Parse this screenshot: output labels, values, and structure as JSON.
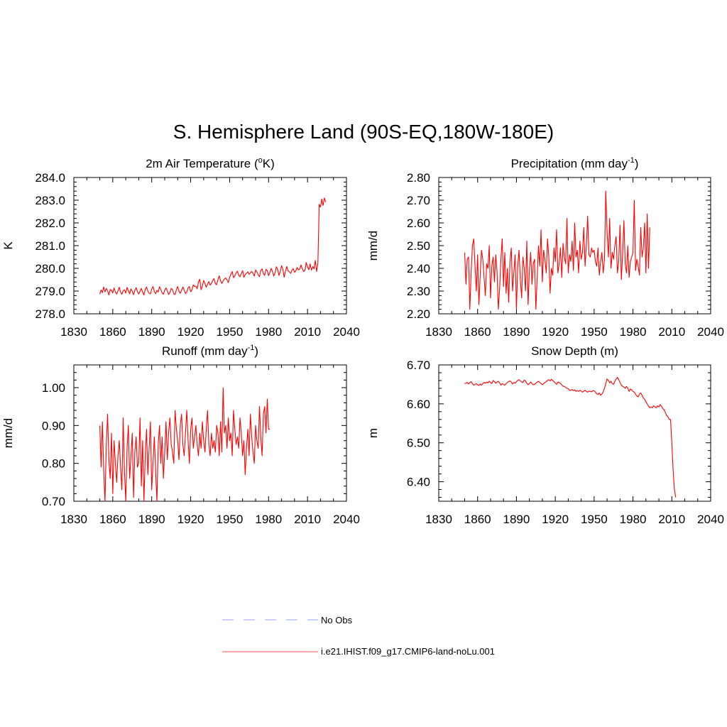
{
  "title": "S. Hemisphere Land (90S-EQ,180W-180E)",
  "legend": {
    "items": [
      {
        "label": "No Obs",
        "color": "#aab4ff",
        "style": "dashed"
      },
      {
        "label": "i.e21.IHIST.f09_g17.CMIP6-land-noLu.001",
        "color": "#ff7777",
        "style": "solid"
      }
    ]
  },
  "series_color": "#ff0000",
  "chart_data": [
    {
      "type": "line",
      "title": "2m Air Temperature (°K)",
      "title_base": "2m Air Temperature (",
      "title_sup": "o",
      "title_tail": "K)",
      "xlabel": "",
      "ylabel": "K",
      "xlim": [
        1830,
        2040
      ],
      "ylim": [
        278.0,
        284.0
      ],
      "xticks": [
        1830,
        1860,
        1890,
        1920,
        1950,
        1980,
        2010,
        2040
      ],
      "yticks": [
        "278.0",
        "279.0",
        "280.0",
        "281.0",
        "282.0",
        "283.0",
        "284.0"
      ],
      "x_start": 1850,
      "values": [
        278.86,
        279.05,
        278.93,
        279.18,
        278.97,
        279.11,
        279.02,
        278.83,
        279.07,
        279.04,
        278.92,
        279.14,
        278.96,
        278.87,
        279.01,
        279.17,
        278.95,
        278.86,
        279.02,
        279.06,
        278.91,
        279.16,
        279.01,
        278.88,
        279.1,
        278.98,
        278.84,
        279.03,
        279.15,
        278.98,
        278.87,
        279.0,
        279.12,
        278.96,
        278.83,
        279.07,
        279.18,
        279.0,
        278.91,
        278.88,
        279.09,
        279.2,
        278.99,
        278.88,
        279.03,
        278.96,
        279.19,
        279.06,
        278.92,
        278.86,
        279.04,
        279.14,
        279.01,
        278.85,
        278.93,
        279.12,
        279.07,
        278.88,
        278.85,
        279.06,
        279.2,
        278.99,
        278.9,
        279.04,
        279.18,
        279.04,
        278.89,
        278.95,
        279.14,
        279.2,
        278.97,
        279.06,
        279.27,
        279.2,
        279.22,
        279.1,
        279.4,
        279.52,
        279.06,
        279.22,
        279.47,
        279.33,
        279.17,
        279.3,
        279.42,
        279.26,
        279.34,
        279.46,
        279.55,
        279.33,
        279.28,
        279.51,
        279.67,
        279.46,
        279.34,
        279.45,
        279.53,
        279.58,
        279.49,
        279.37,
        279.6,
        279.75,
        279.86,
        279.59,
        279.67,
        279.8,
        279.88,
        279.7,
        279.63,
        279.77,
        279.9,
        279.61,
        279.72,
        279.78,
        279.85,
        279.74,
        279.8,
        279.87,
        279.78,
        279.66,
        279.93,
        279.85,
        279.71,
        279.64,
        279.9,
        279.98,
        279.77,
        279.69,
        279.96,
        279.9,
        279.68,
        279.82,
        280.0,
        279.86,
        279.66,
        279.8,
        280.07,
        279.95,
        279.69,
        279.85,
        280.12,
        279.97,
        279.61,
        279.87,
        280.08,
        279.9,
        279.85,
        279.78,
        279.92,
        279.99,
        279.83,
        279.89,
        280.04,
        279.93,
        279.97,
        280.15,
        279.98,
        279.86,
        279.91,
        280.26,
        280.06,
        279.94,
        280.2,
        279.92,
        280.08,
        279.98,
        280.35,
        279.86,
        280.22,
        282.82,
        282.7,
        283.05,
        282.77,
        283.1,
        282.92
      ]
    },
    {
      "type": "line",
      "title": "Precipitation (mm day-1)",
      "title_base": "Precipitation (mm day",
      "title_sup": "-1",
      "title_tail": ")",
      "xlabel": "",
      "ylabel": "mm/d",
      "xlim": [
        1830,
        2040
      ],
      "ylim": [
        2.2,
        2.8
      ],
      "xticks": [
        1830,
        1860,
        1890,
        1920,
        1950,
        1980,
        2010,
        2040
      ],
      "yticks": [
        "2.20",
        "2.30",
        "2.40",
        "2.50",
        "2.60",
        "2.70",
        "2.80"
      ],
      "x_start": 1850,
      "values": [
        2.47,
        2.33,
        2.44,
        2.45,
        2.22,
        2.38,
        2.5,
        2.53,
        2.41,
        2.3,
        2.46,
        2.24,
        2.37,
        2.48,
        2.44,
        2.36,
        2.28,
        2.42,
        2.4,
        2.5,
        2.27,
        2.41,
        2.45,
        2.34,
        2.46,
        2.39,
        2.22,
        2.31,
        2.44,
        2.53,
        2.32,
        2.47,
        2.29,
        2.4,
        2.25,
        2.43,
        2.49,
        2.3,
        2.38,
        2.46,
        2.22,
        2.41,
        2.48,
        2.35,
        2.27,
        2.45,
        2.4,
        2.3,
        2.52,
        2.24,
        2.39,
        2.47,
        2.33,
        2.42,
        2.44,
        2.22,
        2.36,
        2.5,
        2.41,
        2.57,
        2.34,
        2.48,
        2.44,
        2.38,
        2.53,
        2.45,
        2.29,
        2.4,
        2.37,
        2.49,
        2.43,
        2.57,
        2.38,
        2.42,
        2.49,
        2.36,
        2.51,
        2.45,
        2.42,
        2.62,
        2.38,
        2.46,
        2.43,
        2.52,
        2.39,
        2.6,
        2.45,
        2.48,
        2.38,
        2.52,
        2.44,
        2.47,
        2.58,
        2.41,
        2.5,
        2.63,
        2.46,
        2.45,
        2.49,
        2.47,
        2.48,
        2.43,
        2.41,
        2.49,
        2.37,
        2.43,
        2.47,
        2.38,
        2.44,
        2.74,
        2.56,
        2.45,
        2.62,
        2.4,
        2.47,
        2.44,
        2.5,
        2.54,
        2.38,
        2.43,
        2.59,
        2.35,
        2.46,
        2.61,
        2.42,
        2.38,
        2.5,
        2.36,
        2.43,
        2.45,
        2.47,
        2.7,
        2.39,
        2.44,
        2.41,
        2.37,
        2.58,
        2.45,
        2.49,
        2.6,
        2.38,
        2.64,
        2.4,
        2.58
      ]
    },
    {
      "type": "line",
      "title": "Runoff (mm day-1)",
      "title_base": "Runoff (mm day",
      "title_sup": "-1",
      "title_tail": ")",
      "xlabel": "",
      "ylabel": "mm/d",
      "xlim": [
        1830,
        2040
      ],
      "ylim": [
        0.7,
        1.06
      ],
      "xticks": [
        1830,
        1860,
        1890,
        1920,
        1950,
        1980,
        2010,
        2040
      ],
      "yticks": [
        "0.70",
        "0.80",
        "0.90",
        "1.00"
      ],
      "ytick_values": [
        0.7,
        0.8,
        0.9,
        1.0
      ],
      "x_start": 1850,
      "values": [
        0.9,
        0.79,
        0.91,
        0.78,
        0.7,
        0.85,
        0.93,
        0.81,
        0.76,
        0.88,
        0.72,
        0.86,
        0.8,
        0.75,
        0.82,
        0.86,
        0.79,
        0.73,
        0.92,
        0.78,
        0.7,
        0.84,
        0.9,
        0.76,
        0.82,
        0.88,
        0.71,
        0.83,
        0.87,
        0.79,
        0.8,
        0.92,
        0.74,
        0.86,
        0.7,
        0.82,
        0.89,
        0.77,
        0.84,
        0.91,
        0.73,
        0.8,
        0.87,
        0.78,
        0.7,
        0.85,
        0.9,
        0.8,
        0.87,
        0.76,
        0.83,
        0.91,
        0.81,
        0.88,
        0.92,
        0.85,
        0.83,
        0.8,
        0.94,
        0.89,
        0.86,
        0.81,
        0.9,
        0.93,
        0.85,
        0.82,
        0.88,
        0.94,
        0.86,
        0.8,
        0.89,
        0.92,
        0.84,
        0.87,
        0.9,
        0.85,
        0.82,
        0.88,
        0.84,
        0.91,
        0.86,
        0.83,
        0.89,
        0.94,
        0.85,
        0.82,
        0.88,
        0.84,
        0.86,
        0.83,
        0.9,
        0.88,
        0.82,
        0.91,
        0.83,
        1.0,
        0.88,
        0.9,
        0.84,
        0.92,
        0.86,
        0.88,
        0.82,
        0.94,
        0.89,
        0.85,
        0.87,
        0.84,
        0.92,
        0.88,
        0.82,
        0.86,
        0.77,
        0.84,
        0.89,
        0.82,
        0.93,
        0.87,
        0.83,
        0.8,
        0.9,
        0.86,
        0.84,
        0.95,
        0.87,
        0.82,
        0.93,
        0.95,
        0.88,
        0.97,
        0.89,
        0.89
      ]
    },
    {
      "type": "line",
      "title": "Snow Depth (m)",
      "title_base": "Snow Depth (m)",
      "title_sup": "",
      "title_tail": "",
      "xlabel": "",
      "ylabel": "m",
      "xlim": [
        1830,
        2040
      ],
      "ylim": [
        6.35,
        6.7
      ],
      "xticks": [
        1830,
        1860,
        1890,
        1920,
        1950,
        1980,
        2010,
        2040
      ],
      "yticks": [
        "6.40",
        "6.50",
        "6.60",
        "6.70"
      ],
      "ytick_values": [
        6.4,
        6.5,
        6.6,
        6.7
      ],
      "x_start": 1850,
      "values": [
        6.652,
        6.653,
        6.655,
        6.651,
        6.655,
        6.657,
        6.652,
        6.648,
        6.65,
        6.652,
        6.649,
        6.647,
        6.651,
        6.648,
        6.652,
        6.655,
        6.653,
        6.656,
        6.654,
        6.658,
        6.655,
        6.652,
        6.66,
        6.657,
        6.653,
        6.656,
        6.658,
        6.654,
        6.648,
        6.652,
        6.65,
        6.648,
        6.652,
        6.655,
        6.657,
        6.659,
        6.656,
        6.651,
        6.655,
        6.653,
        6.657,
        6.66,
        6.662,
        6.659,
        6.656,
        6.655,
        6.661,
        6.659,
        6.653,
        6.649,
        6.652,
        6.656,
        6.652,
        6.649,
        6.65,
        6.653,
        6.656,
        6.658,
        6.655,
        6.652,
        6.649,
        6.652,
        6.655,
        6.657,
        6.66,
        6.662,
        6.659,
        6.663,
        6.66,
        6.657,
        6.654,
        6.65,
        6.656,
        6.655,
        6.652,
        6.649,
        6.645,
        6.645,
        6.642,
        6.64,
        6.639,
        6.635,
        6.635,
        6.637,
        6.634,
        6.636,
        6.632,
        6.634,
        6.632,
        6.635,
        6.633,
        6.63,
        6.633,
        6.635,
        6.632,
        6.63,
        6.633,
        6.632,
        6.631,
        6.634,
        6.634,
        6.63,
        6.626,
        6.624,
        6.628,
        6.622,
        6.625,
        6.631,
        6.64,
        6.652,
        6.664,
        6.66,
        6.654,
        6.658,
        6.652,
        6.65,
        6.658,
        6.664,
        6.668,
        6.662,
        6.655,
        6.648,
        6.645,
        6.643,
        6.64,
        6.645,
        6.64,
        6.632,
        6.638,
        6.636,
        6.632,
        6.63,
        6.625,
        6.62,
        6.618,
        6.625,
        6.628,
        6.622,
        6.615,
        6.612,
        6.605,
        6.6,
        6.594,
        6.59,
        6.592,
        6.59,
        6.595,
        6.592,
        6.59,
        6.595,
        6.592,
        6.598,
        6.594,
        6.588,
        6.585,
        6.578,
        6.57,
        6.567,
        6.56,
        6.56,
        6.5,
        6.43,
        6.38,
        6.36
      ]
    }
  ]
}
